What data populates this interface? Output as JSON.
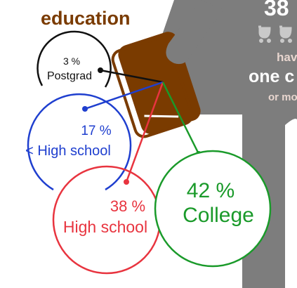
{
  "heading": "education",
  "top_fragment": {
    "number": "38",
    "line1": "hav",
    "line2": "one c",
    "line3": "or mo"
  },
  "segments": [
    {
      "id": "postgrad",
      "percent": "3 %",
      "label": "Postgrad",
      "value": 3,
      "color": "#111111"
    },
    {
      "id": "less-than-high-school",
      "percent": "17 %",
      "label": "< High school",
      "value": 17,
      "color": "#1f3fcf"
    },
    {
      "id": "high-school",
      "percent": "38 %",
      "label": "High school",
      "value": 38,
      "color": "#e8343f"
    },
    {
      "id": "college",
      "percent": "42 %",
      "label": "College",
      "value": 42,
      "color": "#1a9a2a"
    }
  ],
  "colors": {
    "heading": "#7a3b00",
    "book": "#7a3b00",
    "figure": "#7d7d7d",
    "banner_text": "#ffffff",
    "banner_accent": "#e8d6cf"
  },
  "icons": [
    "stroller-icon",
    "stroller-icon"
  ]
}
